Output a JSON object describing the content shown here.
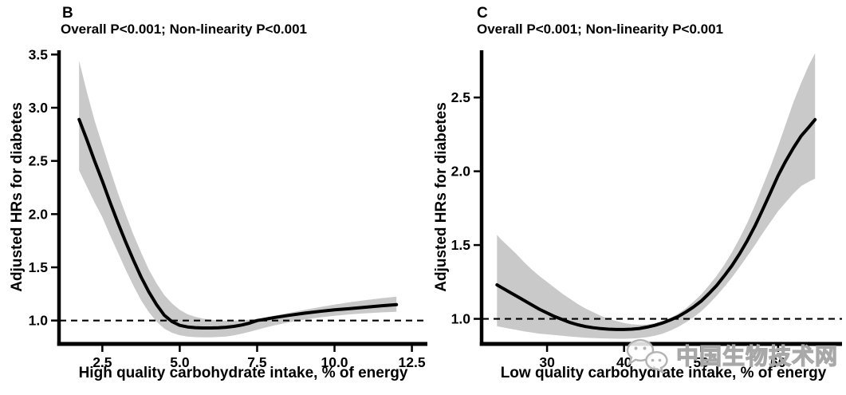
{
  "colors": {
    "curve": "#000000",
    "ci_band": "#c9c9c9",
    "reference_line": "#000000",
    "text": "#000000",
    "watermark_gray": "#ababab",
    "background": "#ffffff"
  },
  "watermark": {
    "icon": "wechat-icon",
    "text": "中国生物技术网"
  },
  "chart_data": [
    {
      "type": "line",
      "panel_label": "B",
      "subtitle": "Overall P<0.001; Non-linearity P<0.001",
      "xlabel": "High quality carbohydrate intake, % of energy",
      "ylabel": "Adjusted HRs for diabetes",
      "xlim": [
        1.1,
        13.0
      ],
      "ylim": [
        0.78,
        3.54
      ],
      "grid": false,
      "legend": null,
      "reference_line_y": 1.0,
      "xticks": {
        "values": [
          2.5,
          5,
          7.5,
          10,
          12.5
        ],
        "labels": [
          "2.5",
          "5.0",
          "7.5",
          "10.0",
          "12.5"
        ]
      },
      "yticks": {
        "values": [
          1,
          1.5,
          2,
          2.5,
          3,
          3.5
        ],
        "labels": [
          "1.0",
          "1.5",
          "2.0",
          "2.5",
          "3.0",
          "3.5"
        ]
      },
      "series": {
        "x": [
          1.75,
          2,
          2.25,
          2.5,
          2.75,
          3,
          3.25,
          3.5,
          3.75,
          4,
          4.25,
          4.5,
          4.75,
          5,
          5.25,
          5.5,
          5.75,
          6,
          6.25,
          6.5,
          6.75,
          7,
          7.25,
          7.5,
          7.75,
          8,
          8.5,
          9,
          9.5,
          10,
          10.5,
          11,
          11.5,
          12
        ],
        "hr": [
          2.89,
          2.7,
          2.5,
          2.31,
          2.11,
          1.92,
          1.74,
          1.57,
          1.41,
          1.27,
          1.15,
          1.05,
          0.99,
          0.955,
          0.94,
          0.933,
          0.93,
          0.93,
          0.932,
          0.937,
          0.945,
          0.958,
          0.975,
          1.0,
          1.012,
          1.025,
          1.048,
          1.068,
          1.085,
          1.1,
          1.112,
          1.125,
          1.138,
          1.15
        ],
        "ci_upper": [
          3.44,
          3.15,
          2.88,
          2.65,
          2.42,
          2.2,
          2.0,
          1.81,
          1.64,
          1.48,
          1.35,
          1.24,
          1.16,
          1.1,
          1.06,
          1.035,
          1.018,
          1.008,
          1.002,
          1.0,
          1.0,
          1.003,
          1.008,
          1.015,
          1.028,
          1.042,
          1.07,
          1.098,
          1.125,
          1.15,
          1.172,
          1.192,
          1.21,
          1.225
        ],
        "ci_lower": [
          2.41,
          2.26,
          2.11,
          1.97,
          1.8,
          1.64,
          1.48,
          1.33,
          1.19,
          1.08,
          0.99,
          0.925,
          0.885,
          0.862,
          0.85,
          0.844,
          0.842,
          0.842,
          0.845,
          0.85,
          0.86,
          0.875,
          0.893,
          0.913,
          0.933,
          0.95,
          0.982,
          1.008,
          1.028,
          1.045,
          1.058,
          1.068,
          1.076,
          1.082
        ]
      }
    },
    {
      "type": "line",
      "panel_label": "C",
      "subtitle": "Overall P<0.001; Non-linearity P<0.001",
      "xlabel": "Low quality carbohydrate intake, % of energy",
      "ylabel": "Adjusted HRs for diabetes",
      "xlim": [
        21.5,
        68.3
      ],
      "ylim": [
        0.83,
        2.82
      ],
      "grid": false,
      "legend": null,
      "reference_line_y": 1.0,
      "xticks": {
        "values": [
          30,
          40,
          50,
          60
        ],
        "labels": [
          "30",
          "40",
          "50",
          "60"
        ]
      },
      "yticks": {
        "values": [
          1,
          1.5,
          2,
          2.5
        ],
        "labels": [
          "1.0",
          "1.5",
          "2.0",
          "2.5"
        ]
      },
      "series": {
        "x": [
          23.5,
          24,
          25,
          26,
          27,
          28,
          29,
          30,
          31,
          32,
          33,
          34,
          35,
          36,
          37,
          38,
          39,
          40,
          41,
          42,
          43,
          44,
          45,
          46,
          47,
          48,
          49,
          50,
          51,
          52,
          53,
          54,
          55,
          56,
          57,
          58,
          59,
          60,
          61,
          62,
          63,
          64,
          64.8
        ],
        "hr": [
          1.23,
          1.215,
          1.185,
          1.155,
          1.125,
          1.095,
          1.065,
          1.04,
          1.015,
          0.995,
          0.975,
          0.96,
          0.948,
          0.94,
          0.934,
          0.93,
          0.928,
          0.928,
          0.93,
          0.935,
          0.944,
          0.956,
          0.972,
          0.992,
          1.015,
          1.045,
          1.08,
          1.12,
          1.17,
          1.225,
          1.29,
          1.36,
          1.44,
          1.53,
          1.63,
          1.74,
          1.855,
          1.97,
          2.07,
          2.16,
          2.24,
          2.3,
          2.35
        ],
        "ci_upper": [
          1.57,
          1.54,
          1.49,
          1.44,
          1.385,
          1.335,
          1.29,
          1.25,
          1.21,
          1.17,
          1.135,
          1.1,
          1.07,
          1.045,
          1.02,
          1.0,
          0.985,
          0.972,
          0.963,
          0.96,
          0.962,
          0.97,
          0.985,
          1.005,
          1.035,
          1.07,
          1.115,
          1.165,
          1.225,
          1.29,
          1.365,
          1.45,
          1.545,
          1.65,
          1.77,
          1.9,
          2.03,
          2.17,
          2.32,
          2.47,
          2.6,
          2.72,
          2.8
        ],
        "ci_lower": [
          0.95,
          0.945,
          0.935,
          0.925,
          0.915,
          0.908,
          0.9,
          0.895,
          0.89,
          0.885,
          0.88,
          0.876,
          0.872,
          0.87,
          0.868,
          0.866,
          0.865,
          0.865,
          0.867,
          0.87,
          0.876,
          0.885,
          0.9,
          0.92,
          0.945,
          0.975,
          1.01,
          1.05,
          1.1,
          1.155,
          1.215,
          1.28,
          1.35,
          1.425,
          1.5,
          1.58,
          1.655,
          1.73,
          1.79,
          1.85,
          1.9,
          1.93,
          1.95
        ]
      }
    }
  ]
}
